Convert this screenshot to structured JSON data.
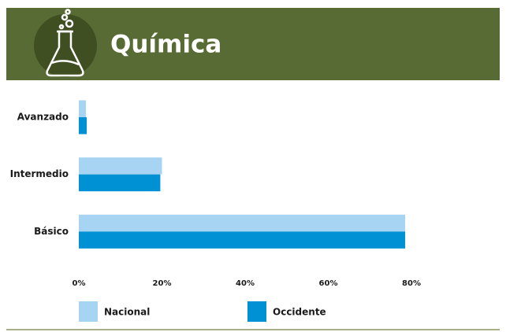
{
  "chart_data": {
    "type": "bar",
    "orientation": "horizontal",
    "title": "Química",
    "categories": [
      "Avanzado",
      "Intermedio",
      "Básico"
    ],
    "series": [
      {
        "name": "Nacional",
        "color": "#a6d4f2",
        "values": [
          1.7,
          20,
          78.5
        ]
      },
      {
        "name": "Occidente",
        "color": "#0091d5",
        "values": [
          1.9,
          19.6,
          78.5
        ]
      }
    ],
    "xlim": [
      0,
      80
    ],
    "xticks": [
      {
        "value": 0,
        "label": "0%"
      },
      {
        "value": 20,
        "label": "20%"
      },
      {
        "value": 40,
        "label": "40%"
      },
      {
        "value": 60,
        "label": "60%"
      },
      {
        "value": 80,
        "label": "80%"
      }
    ]
  }
}
